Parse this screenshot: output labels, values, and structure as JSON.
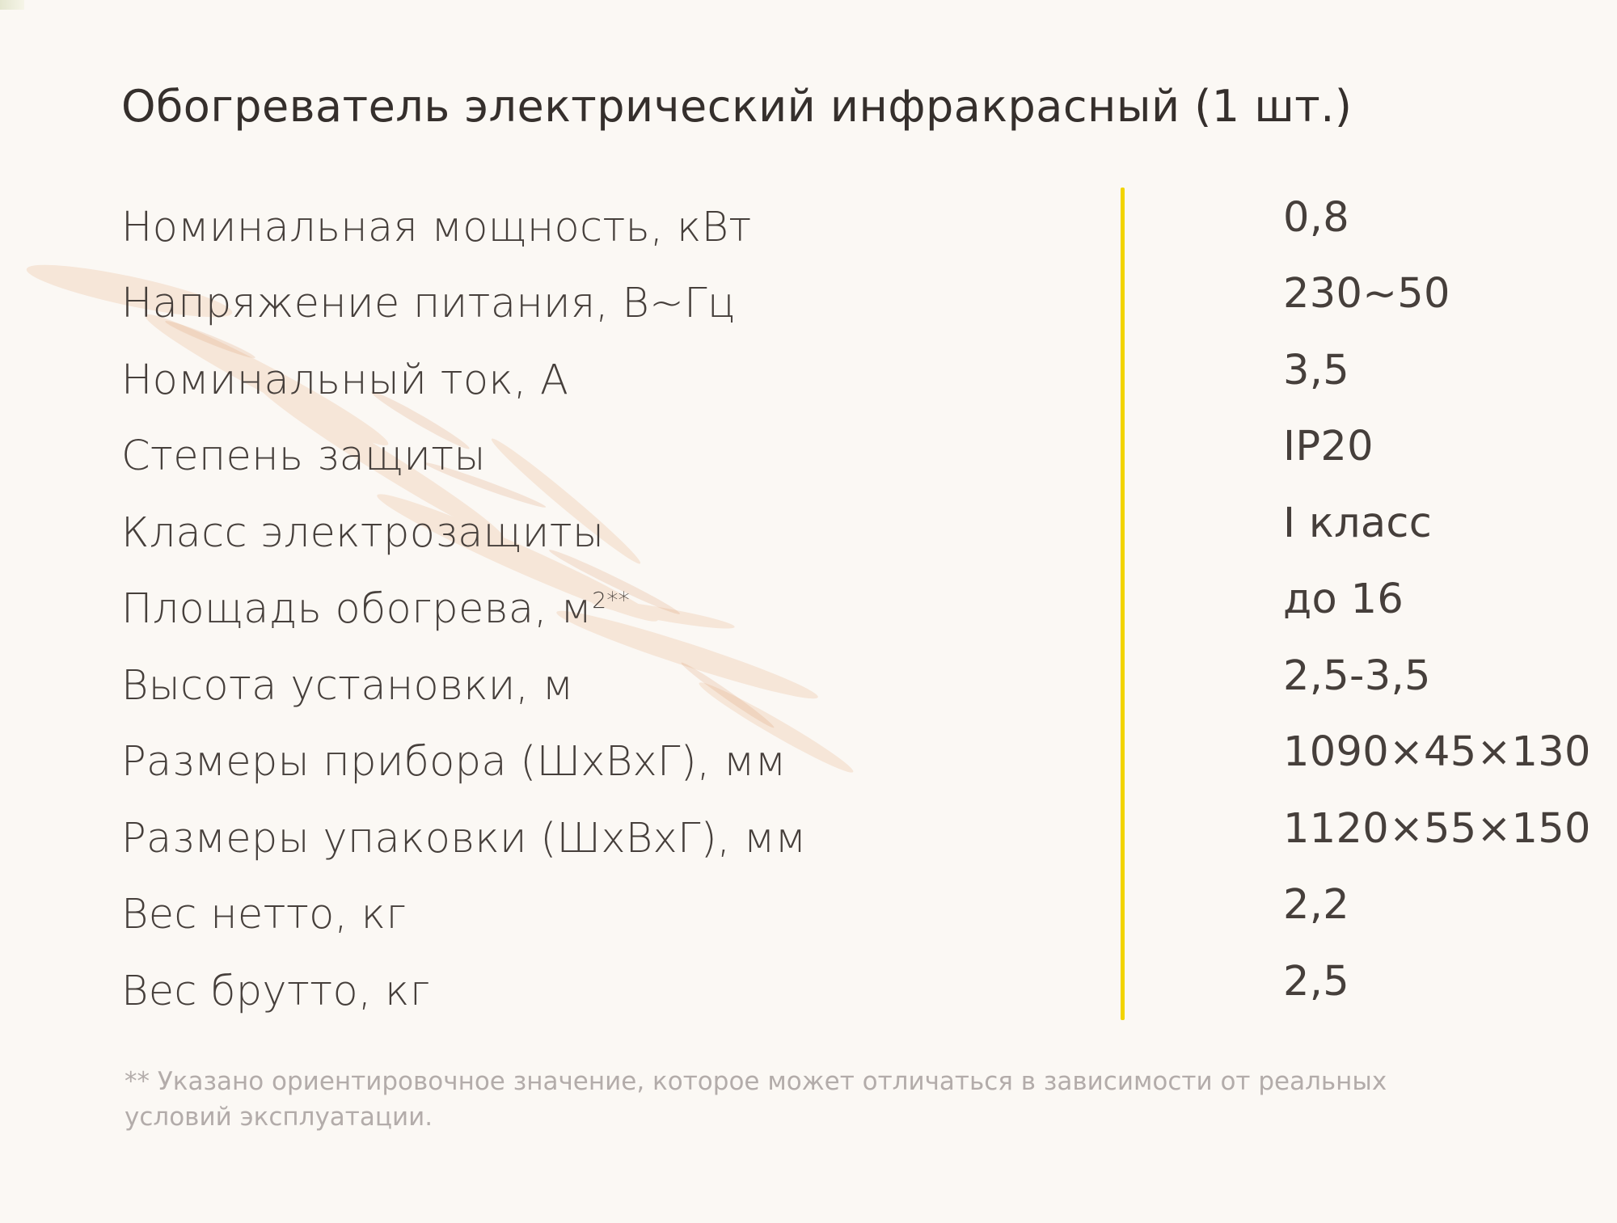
{
  "title": "Обогреватель электрический инфракрасный (1 шт.)",
  "specs": [
    {
      "label": "Номинальная мощность, кВт",
      "value": "0,8"
    },
    {
      "label": "Напряжение питания, В~Гц",
      "value": "230~50"
    },
    {
      "label": "Номинальный ток, А",
      "value": "3,5"
    },
    {
      "label": "Степень защиты",
      "value": "IP20"
    },
    {
      "label": "Класс электрозащиты",
      "value": "I класс"
    },
    {
      "label": "Площадь обогрева, м",
      "label_sup": "2**",
      "value": "до 16"
    },
    {
      "label": "Высота установки, м",
      "value": "2,5-3,5"
    },
    {
      "label": "Размеры прибора (ШхВхГ), мм",
      "value": "1090×45×130"
    },
    {
      "label": "Размеры упаковки (ШхВхГ), мм",
      "value": "1120×55×150"
    },
    {
      "label": "Вес нетто, кг",
      "value": "2,2"
    },
    {
      "label": "Вес брутто, кг",
      "value": "2,5"
    }
  ],
  "footnote": "** Указано ориентировочное значение, которое может отличаться в зависимости от реальных условий эксплуатации.",
  "colors": {
    "background": "#fbf8f4",
    "divider": "#f2d400",
    "text": "#463f3b",
    "footnote": "#b3acaa"
  }
}
